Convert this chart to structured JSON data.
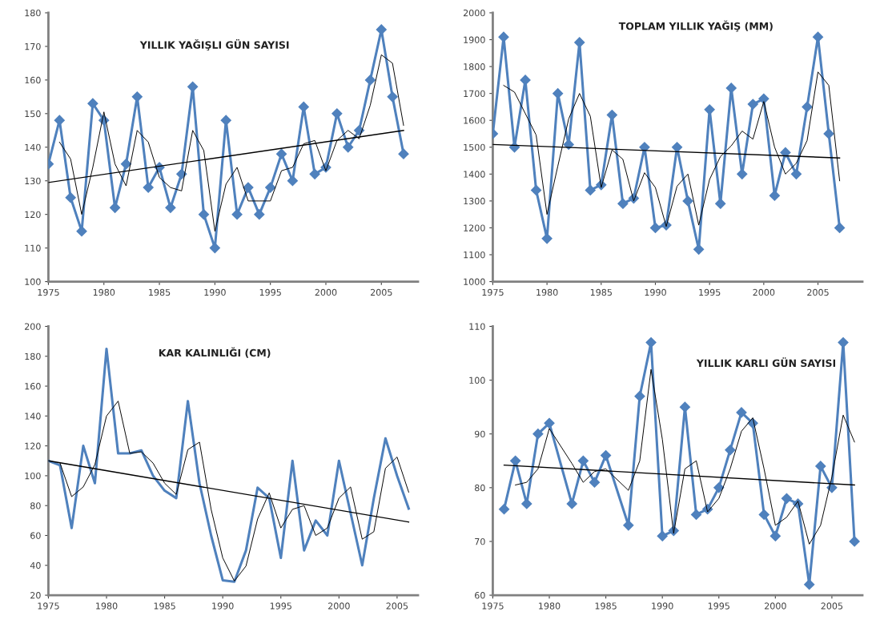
{
  "chart_data": [
    {
      "type": "line",
      "title": "YILLIK YAĞIŞLI GÜN SAYISI",
      "xlim": [
        1975,
        2008.3
      ],
      "xticks": [
        1975,
        1980,
        1985,
        1990,
        1995,
        2000,
        2005
      ],
      "ylim": [
        100,
        180
      ],
      "yticks": [
        100,
        110,
        120,
        130,
        140,
        150,
        160,
        170,
        180
      ],
      "grid": false,
      "series": [
        {
          "type": "line",
          "color": "#4f81bd",
          "marker": "diamond",
          "x": [
            1975,
            1976,
            1977,
            1978,
            1979,
            1980,
            1981,
            1982,
            1983,
            1984,
            1985,
            1986,
            1987,
            1988,
            1989,
            1990,
            1991,
            1992,
            1993,
            1994,
            1995,
            1996,
            1997,
            1998,
            1999,
            2000,
            2001,
            2002,
            2003,
            2004,
            2005,
            2006,
            2007
          ],
          "values": [
            135,
            148,
            125,
            115,
            153,
            148,
            122,
            135,
            155,
            128,
            134,
            122,
            132,
            158,
            120,
            110,
            148,
            120,
            128,
            120,
            128,
            138,
            130,
            152,
            132,
            134,
            150,
            140,
            145,
            160,
            175,
            155,
            138
          ]
        },
        {
          "type": "line",
          "color": "#000000",
          "marker": "none",
          "x": [
            1976,
            1977,
            1978,
            1979,
            1980,
            1981,
            1982,
            1983,
            1984,
            1985,
            1986,
            1987,
            1988,
            1989,
            1990,
            1991,
            1992,
            1993,
            1994,
            1995,
            1996,
            1997,
            1998,
            1999,
            2000,
            2001,
            2002,
            2003,
            2004,
            2005,
            2006,
            2007
          ],
          "values": [
            141.5,
            136.5,
            120,
            134,
            150.5,
            135,
            128.5,
            145,
            141.5,
            131,
            128,
            127,
            145,
            139,
            115,
            129,
            134,
            124,
            124,
            124,
            133,
            134,
            141,
            142,
            133,
            142,
            145,
            142.5,
            152.5,
            167.5,
            165,
            146.5
          ]
        },
        {
          "type": "line",
          "color": "#000000",
          "marker": "none",
          "x": [
            1975,
            2007
          ],
          "values": [
            129.5,
            145
          ]
        }
      ]
    },
    {
      "type": "line",
      "title": "TOPLAM YILLIK YAĞIŞ (MM)",
      "xlim": [
        1975,
        2009.1
      ],
      "xticks": [
        1975,
        1980,
        1985,
        1990,
        1995,
        2000,
        2005
      ],
      "ylim": [
        1000,
        2000
      ],
      "yticks": [
        1000,
        1100,
        1200,
        1300,
        1400,
        1500,
        1600,
        1700,
        1800,
        1900,
        2000
      ],
      "grid": false,
      "series": [
        {
          "type": "line",
          "color": "#4f81bd",
          "marker": "diamond",
          "x": [
            1975,
            1976,
            1977,
            1978,
            1979,
            1980,
            1981,
            1982,
            1983,
            1984,
            1985,
            1986,
            1987,
            1988,
            1989,
            1990,
            1991,
            1992,
            1993,
            1994,
            1995,
            1996,
            1997,
            1998,
            1999,
            2000,
            2001,
            2002,
            2003,
            2004,
            2005,
            2006,
            2007
          ],
          "values": [
            1550,
            1910,
            1500,
            1750,
            1340,
            1160,
            1700,
            1510,
            1890,
            1340,
            1360,
            1620,
            1290,
            1310,
            1500,
            1200,
            1210,
            1500,
            1300,
            1120,
            1640,
            1290,
            1720,
            1400,
            1660,
            1680,
            1320,
            1480,
            1400,
            1650,
            1910,
            1550,
            1200
          ]
        },
        {
          "type": "line",
          "color": "#000000",
          "marker": "none",
          "x": [
            1976,
            1977,
            1978,
            1979,
            1980,
            1981,
            1982,
            1983,
            1984,
            1985,
            1986,
            1987,
            1988,
            1989,
            1990,
            1991,
            1992,
            1993,
            1994,
            1995,
            1996,
            1997,
            1998,
            1999,
            2000,
            2001,
            2002,
            2003,
            2004,
            2005,
            2006,
            2007
          ],
          "values": [
            1730,
            1705,
            1625,
            1545,
            1250,
            1430,
            1605,
            1700,
            1615,
            1350,
            1490,
            1455,
            1300,
            1405,
            1350,
            1205,
            1355,
            1400,
            1210,
            1380,
            1465,
            1505,
            1560,
            1530,
            1670,
            1500,
            1400,
            1440,
            1525,
            1780,
            1730,
            1375
          ]
        },
        {
          "type": "line",
          "color": "#000000",
          "marker": "none",
          "x": [
            1975,
            2007
          ],
          "values": [
            1510,
            1460
          ]
        }
      ]
    },
    {
      "type": "line",
      "title": "KAR KALINLIĞI (CM)",
      "xlim": [
        1975,
        2006.8
      ],
      "xticks": [
        1975,
        1980,
        1985,
        1990,
        1995,
        2000,
        2005
      ],
      "ylim": [
        20,
        200
      ],
      "yticks": [
        20,
        40,
        60,
        80,
        100,
        120,
        140,
        160,
        180,
        200
      ],
      "grid": false,
      "series": [
        {
          "type": "line",
          "color": "#4f81bd",
          "marker": "none",
          "x": [
            1975,
            1976,
            1977,
            1978,
            1979,
            1980,
            1981,
            1982,
            1983,
            1984,
            1985,
            1986,
            1987,
            1988,
            1989,
            1990,
            1991,
            1992,
            1993,
            1994,
            1995,
            1996,
            1997,
            1998,
            1999,
            2000,
            2001,
            2002,
            2003,
            2004,
            2005,
            2006
          ],
          "values": [
            110,
            107,
            65,
            120,
            95,
            185,
            115,
            115,
            117,
            100,
            90,
            85,
            150,
            95,
            60,
            30,
            29,
            50,
            92,
            85,
            45,
            110,
            50,
            70,
            60,
            110,
            75,
            40,
            85,
            125,
            100,
            78
          ]
        },
        {
          "type": "line",
          "color": "#000000",
          "marker": "none",
          "x": [
            1976,
            1977,
            1978,
            1979,
            1980,
            1981,
            1982,
            1983,
            1984,
            1985,
            1986,
            1987,
            1988,
            1989,
            1990,
            1991,
            1992,
            1993,
            1994,
            1995,
            1996,
            1997,
            1998,
            1999,
            2000,
            2001,
            2002,
            2003,
            2004,
            2005,
            2006
          ],
          "values": [
            108.5,
            86,
            92.5,
            107.5,
            140,
            150,
            115,
            116,
            108.5,
            95,
            87.5,
            117.5,
            122.5,
            77.5,
            45,
            29.5,
            39.5,
            71,
            88.5,
            65,
            77.5,
            80,
            60,
            65,
            85,
            92.5,
            57.5,
            62.5,
            105,
            112.5,
            89
          ]
        },
        {
          "type": "line",
          "color": "#000000",
          "marker": "none",
          "x": [
            1975,
            2006
          ],
          "values": [
            110,
            69
          ]
        }
      ]
    },
    {
      "type": "line",
      "title": "YILLIK KARLI GÜN SAYISI",
      "xlim": [
        1975,
        2007.7
      ],
      "xticks": [
        1975,
        1980,
        1985,
        1990,
        1995,
        2000,
        2005
      ],
      "ylim": [
        60,
        110
      ],
      "yticks": [
        60,
        70,
        80,
        90,
        100,
        110
      ],
      "grid": false,
      "series": [
        {
          "type": "line",
          "color": "#4f81bd",
          "marker": "diamond",
          "x": [
            1976,
            1977,
            1978,
            1979,
            1980,
            1982,
            1983,
            1984,
            1985,
            1987,
            1988,
            1989,
            1990,
            1991,
            1992,
            1993,
            1994,
            1995,
            1996,
            1997,
            1998,
            1999,
            2000,
            2001,
            2002,
            2003,
            2004,
            2005,
            2006,
            2007
          ],
          "values": [
            76,
            85,
            77,
            90,
            92,
            77,
            85,
            81,
            86,
            73,
            97,
            107,
            71,
            72,
            95,
            75,
            76,
            80,
            87,
            94,
            92,
            75,
            71,
            78,
            77,
            62,
            84,
            80,
            107,
            70
          ]
        },
        {
          "type": "line",
          "color": "#000000",
          "marker": "none",
          "x": [
            1977,
            1978,
            1979,
            1980,
            1982,
            1983,
            1984,
            1985,
            1987,
            1988,
            1989,
            1990,
            1991,
            1992,
            1993,
            1994,
            1995,
            1996,
            1997,
            1998,
            1999,
            2000,
            2001,
            2002,
            2003,
            2004,
            2005,
            2006,
            2007
          ],
          "values": [
            80.5,
            81,
            83.5,
            91,
            84.5,
            81,
            83,
            83.5,
            79.5,
            85,
            102,
            89,
            71.5,
            83.5,
            85,
            75.5,
            78,
            83.5,
            90.5,
            93,
            83.5,
            73,
            74.5,
            77.5,
            69.5,
            73,
            82,
            93.5,
            88.5
          ]
        },
        {
          "type": "line",
          "color": "#000000",
          "marker": "none",
          "x": [
            1976,
            2007
          ],
          "values": [
            84.2,
            80.5
          ]
        }
      ]
    }
  ]
}
